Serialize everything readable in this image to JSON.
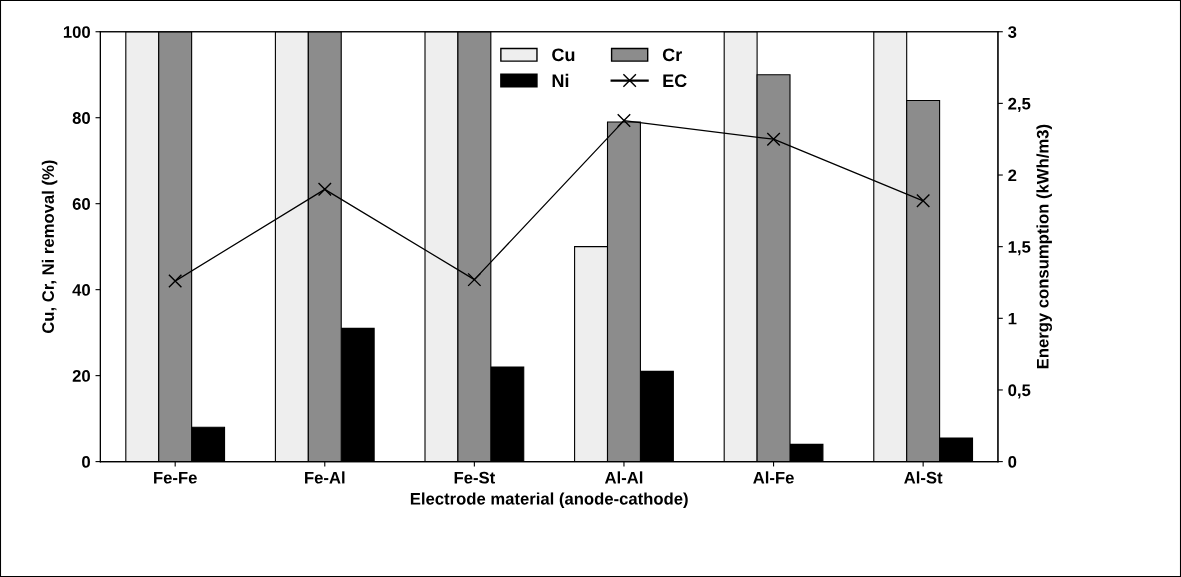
{
  "chart_data": {
    "type": "bar",
    "xlabel": "Electrode material (anode-cathode)",
    "ylabel": "Cu, Cr, Ni removal (%)",
    "y2label": "Energy consumption (kWh/m3)",
    "categories": [
      "Fe-Fe",
      "Fe-Al",
      "Fe-St",
      "Al-Al",
      "Al-Fe",
      "Al-St"
    ],
    "series": [
      {
        "name": "Cu",
        "color": "#eeeeee",
        "values": [
          100,
          100,
          100,
          50,
          100,
          100
        ]
      },
      {
        "name": "Cr",
        "color": "#8c8c8c",
        "values": [
          100,
          100,
          100,
          79,
          90,
          84
        ]
      },
      {
        "name": "Ni",
        "color": "#000000",
        "values": [
          8,
          31,
          22,
          21,
          4,
          5.5
        ]
      },
      {
        "name": "EC",
        "type": "line",
        "axis": "y2",
        "color": "#000000",
        "values": [
          1.26,
          1.9,
          1.27,
          2.38,
          2.25,
          1.82
        ]
      }
    ],
    "marker": "cross",
    "ylim": [
      0,
      100
    ],
    "yticks": [
      0,
      20,
      40,
      60,
      80,
      100
    ],
    "y2lim": [
      0,
      3
    ],
    "y2ticks": [
      0,
      {
        "value": 0.5,
        "label": "0,5"
      },
      1,
      {
        "value": 1.5,
        "label": "1,5"
      },
      2,
      {
        "value": 2.5,
        "label": "2,5"
      },
      3
    ],
    "legend": "top",
    "grid": false
  }
}
